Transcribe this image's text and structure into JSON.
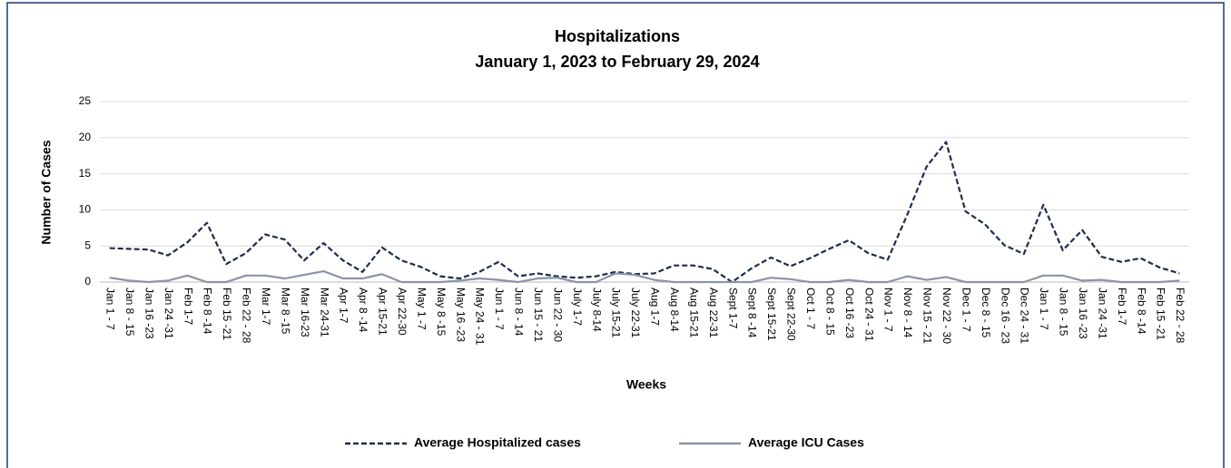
{
  "chart_data": {
    "type": "line",
    "title": "Hospitalizations",
    "subtitle": "January 1, 2023 to February 29, 2024",
    "x_label": "Weeks",
    "y_label": "Number of Cases",
    "categories": [
      "Jan 1 - 7",
      "Jan 8 - 15",
      "Jan 16 -23",
      "Jan 24 -31",
      "Feb 1-7",
      "Feb 8 -14",
      "Feb 15 -21",
      "Feb 22 - 28",
      "Mar 1-7",
      "Mar 8 -15",
      "Mar 16-23",
      "Mar 24-31",
      "Apr 1-7",
      "Apr 8 -14",
      "Apr 15-21",
      "Apr 22-30",
      "May 1 -7",
      "May 8 -15",
      "May 16 -23",
      "May 24 - 31",
      "Jun 1 - 7",
      "Jun 8 - 14",
      "Jun 15 - 21",
      "Jun 22 - 30",
      "July 1-7",
      "July 8-14",
      "July 15-21",
      "July 22-31",
      "Aug 1-7",
      "Aug 8-14",
      "Aug 15-21",
      "Aug 22-31",
      "Sept 1-7",
      "Sept 8 -14",
      "Sept 15-21",
      "Sept 22-30",
      "Oct 1 - 7",
      "Oct 8 - 15",
      "Oct 16 -23",
      "Oct 24 - 31",
      "Nov 1 - 7",
      "Nov 8 - 14",
      "Nov 15 - 21",
      "Nov 22 - 30",
      "Dec 1 - 7",
      "Dec 8 - 15",
      "Dec 16 - 23",
      "Dec 24 - 31",
      "Jan 1 - 7",
      "Jan 8 - 15",
      "Jan 16 -23",
      "Jan 24 -31",
      "Feb 1-7",
      "Feb 8 -14",
      "Feb 15 -21",
      "Feb 22 - 28"
    ],
    "series": [
      {
        "name": "Average Hospitalized cases",
        "color": "#1f2d4e",
        "dash": true,
        "values": [
          4.7,
          4.6,
          4.5,
          3.7,
          5.5,
          8.2,
          2.5,
          4.0,
          6.6,
          5.9,
          3.0,
          5.4,
          3.0,
          1.4,
          4.8,
          3.0,
          2.1,
          0.8,
          0.5,
          1.4,
          2.8,
          0.8,
          1.2,
          0.8,
          0.6,
          0.8,
          1.4,
          1.1,
          1.2,
          2.3,
          2.3,
          1.8,
          0,
          1.9,
          3.4,
          2.2,
          3.3,
          4.6,
          5.8,
          4.0,
          3.1,
          9.3,
          16.0,
          19.4,
          9.8,
          8.0,
          5.1,
          3.9,
          10.7,
          4.4,
          7.2,
          3.5,
          2.8,
          3.3,
          2.0,
          1.2
        ]
      },
      {
        "name": "Average ICU Cases",
        "color": "#8a94a8",
        "dash": false,
        "values": [
          0.6,
          0.2,
          0,
          0.2,
          0.9,
          0,
          0,
          0.9,
          0.9,
          0.5,
          1.0,
          1.5,
          0.5,
          0.5,
          1.1,
          0,
          0,
          0,
          0.2,
          0.5,
          0.3,
          0,
          0.5,
          0.6,
          0,
          0,
          1.2,
          1.0,
          0.3,
          0,
          0,
          0,
          0,
          0,
          0.6,
          0.4,
          0,
          0,
          0.3,
          0,
          0,
          0.8,
          0.3,
          0.7,
          0,
          0,
          0,
          0,
          0.9,
          0.9,
          0.2,
          0.3,
          0,
          0,
          0,
          0.2
        ]
      }
    ],
    "ylim": [
      0,
      25
    ],
    "yticks": [
      0,
      5,
      10,
      15,
      20,
      25
    ],
    "grid": true,
    "legend": "bottom"
  }
}
